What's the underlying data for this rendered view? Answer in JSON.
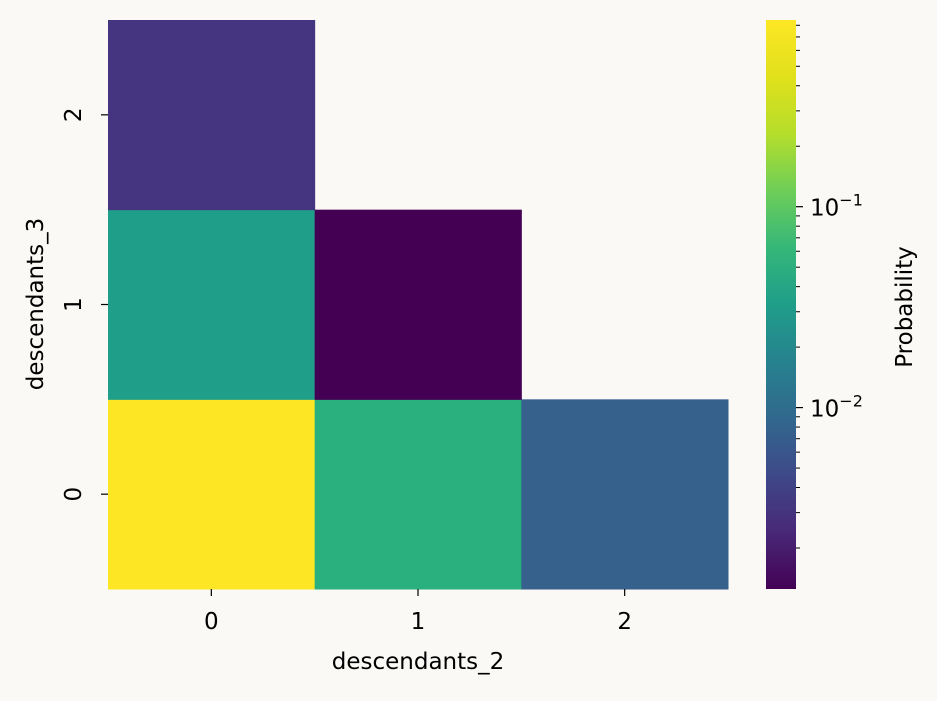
{
  "chart_data": {
    "type": "heatmap",
    "xlabel": "descendants_2",
    "ylabel": "descendants_3",
    "x_categories": [
      "0",
      "1",
      "2"
    ],
    "y_categories": [
      "0",
      "1",
      "2"
    ],
    "cells": [
      {
        "x": "0",
        "y": "0",
        "value": 0.8,
        "color": "#fde725"
      },
      {
        "x": "1",
        "y": "0",
        "value": 0.11,
        "color": "#2aaf7f"
      },
      {
        "x": "2",
        "y": "0",
        "value": 0.008,
        "color": "#35618c"
      },
      {
        "x": "0",
        "y": "1",
        "value": 0.08,
        "color": "#1f9e89"
      },
      {
        "x": "1",
        "y": "1",
        "value": 0.0013,
        "color": "#440154"
      },
      {
        "x": "0",
        "y": "2",
        "value": 0.0025,
        "color": "#453581"
      }
    ],
    "missing_cells": [
      {
        "x": "1",
        "y": "2"
      },
      {
        "x": "2",
        "y": "2"
      },
      {
        "x": "2",
        "y": "1"
      }
    ],
    "colorbar": {
      "label": "Probability",
      "scale": "log",
      "colormap": "viridis",
      "range": [
        0.00125,
        0.85
      ],
      "major_ticks": [
        {
          "value": 0.1,
          "base": "10",
          "exponent": "−1"
        },
        {
          "value": 0.01,
          "base": "10",
          "exponent": "−2"
        }
      ]
    },
    "grid": false
  }
}
